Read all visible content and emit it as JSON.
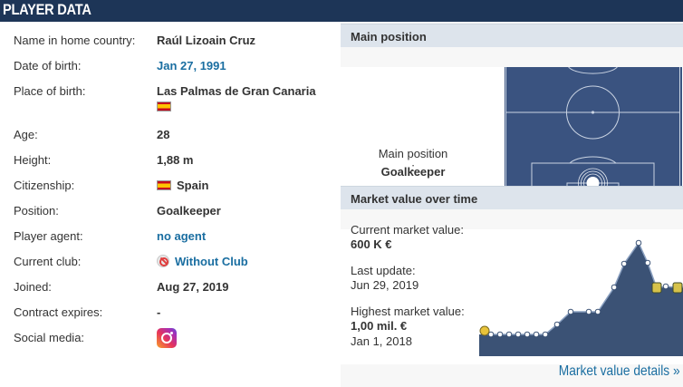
{
  "header": {
    "title": "PLAYER DATA"
  },
  "player": {
    "rows": [
      {
        "label": "Name in home country:",
        "value": "Raúl Lizoain Cruz"
      },
      {
        "label": "Date of birth:",
        "value": "Jan 27, 1991"
      },
      {
        "label": "Place of birth:",
        "value": "Las Palmas de Gran Canaria"
      },
      {
        "label": "Age:",
        "value": "28"
      },
      {
        "label": "Height:",
        "value": "1,88 m"
      },
      {
        "label": "Citizenship:",
        "value": "Spain"
      },
      {
        "label": "Position:",
        "value": "Goalkeeper"
      },
      {
        "label": "Player agent:",
        "value": "no agent"
      },
      {
        "label": "Current club:",
        "value": "Without Club"
      },
      {
        "label": "Joined:",
        "value": "Aug 27, 2019"
      },
      {
        "label": "Contract expires:",
        "value": "-"
      },
      {
        "label": "Social media:",
        "value": ""
      }
    ]
  },
  "main_position": {
    "heading": "Main position",
    "label": "Main position :",
    "value": "Goalkeeper"
  },
  "market_value": {
    "heading": "Market value over time",
    "current_label": "Current market value:",
    "current_value": "600 K €",
    "update_label": "Last update:",
    "update_value": "Jun 29, 2019",
    "highest_label": "Highest market value:",
    "highest_value": "1,00 mil. €",
    "highest_date": "Jan 1, 2018",
    "details_link": "Market value details »"
  },
  "icons": {
    "flag": "spain-flag-icon",
    "club": "without-club-icon",
    "social": "instagram-icon"
  },
  "colors": {
    "header_bg": "#1d3557",
    "link": "#1a6ea1",
    "pitch": "#3a5380",
    "chart_fill": "#3b5275"
  }
}
